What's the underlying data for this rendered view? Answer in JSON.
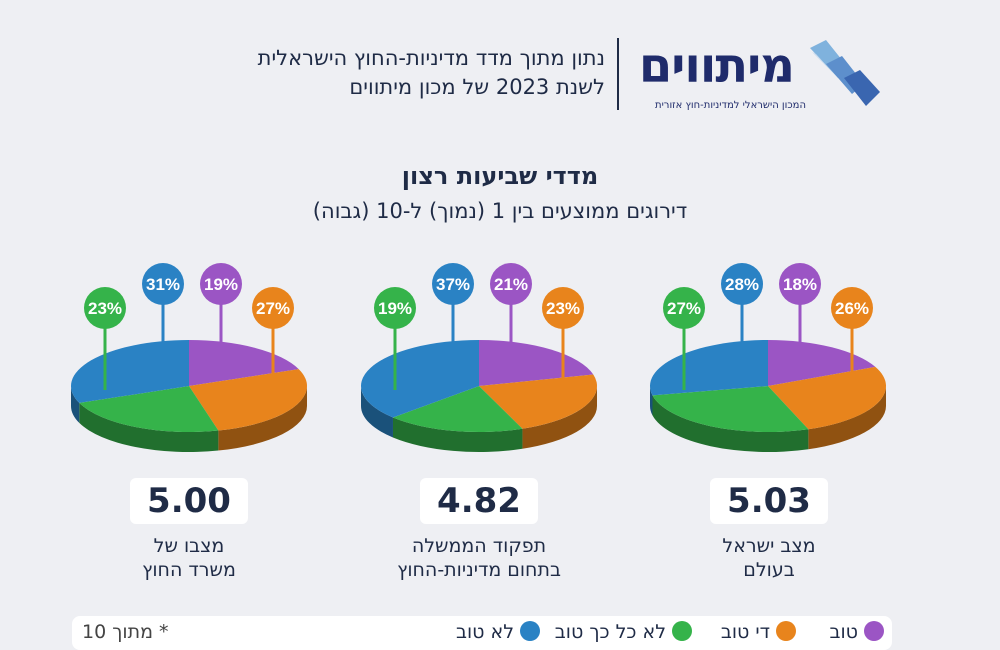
{
  "header": {
    "logo_text": "מיתווים",
    "logo_tagline": "המכון הישראלי למדיניות-חוץ אזורית",
    "line1": "נתון מתוך מדד מדיניות-החוץ הישראלית",
    "line2": "לשנת 2023 של מכון מיתווים"
  },
  "colors": {
    "good": "#9b55c4",
    "fairly_good": "#e8841c",
    "not_so_good": "#35b34a",
    "not_good": "#2a82c4"
  },
  "chart_data": {
    "type": "pie",
    "title": "מדדי שביעות רצון",
    "subtitle": "דירוגים ממוצעים בין 1 (נמוך) ל-10 (גבוה)",
    "legend": [
      {
        "key": "good",
        "label": "טוב"
      },
      {
        "key": "fairly_good",
        "label": "די טוב"
      },
      {
        "key": "not_so_good",
        "label": "לא כל כך טוב"
      },
      {
        "key": "not_good",
        "label": "לא טוב"
      }
    ],
    "legend_note": "* מתוך 10",
    "pies": [
      {
        "score": "5.03",
        "caption_line1": "מצב ישראל",
        "caption_line2": "בעולם",
        "values": {
          "good": 18,
          "fairly_good": 26,
          "not_so_good": 27,
          "not_good": 28
        }
      },
      {
        "score": "4.82",
        "caption_line1": "תפקוד הממשלה",
        "caption_line2": "בתחום מדיניות-החוץ",
        "values": {
          "good": 21,
          "fairly_good": 23,
          "not_so_good": 19,
          "not_good": 37
        }
      },
      {
        "score": "5.00",
        "caption_line1": "מצבו של",
        "caption_line2": "משרד החוץ",
        "values": {
          "good": 19,
          "fairly_good": 27,
          "not_so_good": 23,
          "not_good": 31
        }
      }
    ]
  }
}
